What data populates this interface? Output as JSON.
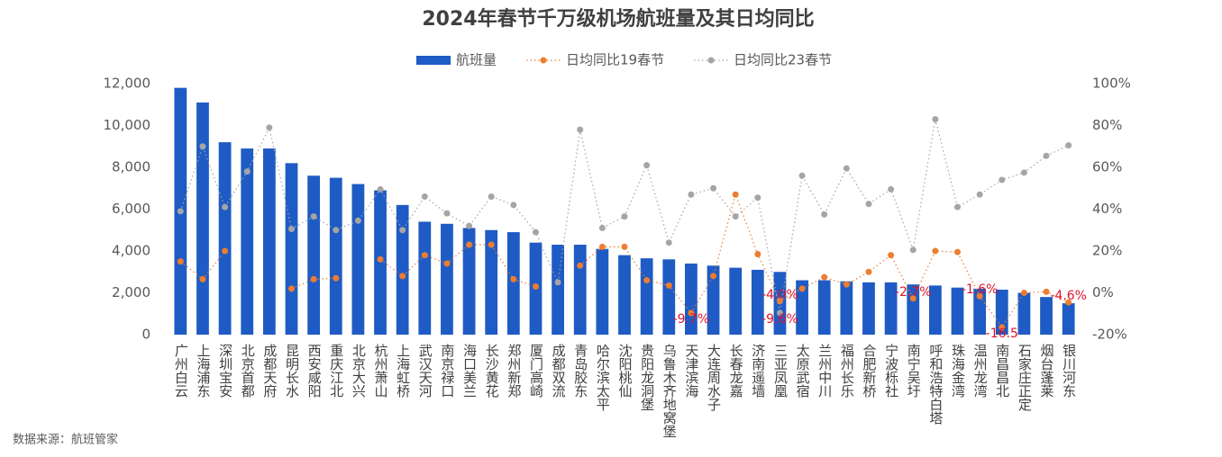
{
  "chart_data": {
    "type": "bar",
    "title": "2024年春节千万级机场航班量及其日均同比",
    "source": "数据来源：航班管家",
    "categories": [
      "广州白云",
      "上海浦东",
      "深圳宝安",
      "北京首都",
      "成都天府",
      "昆明长水",
      "西安咸阳",
      "重庆江北",
      "北京大兴",
      "杭州萧山",
      "上海虹桥",
      "武汉天河",
      "南京禄口",
      "海口美兰",
      "长沙黄花",
      "郑州新郑",
      "厦门高崎",
      "成都双流",
      "青岛胶东",
      "哈尔滨太平",
      "沈阳桃仙",
      "贵阳龙洞堡",
      "乌鲁木齐地窝堡",
      "天津滨海",
      "大连周水子",
      "长春龙嘉",
      "济南遥墙",
      "三亚凤凰",
      "太原武宿",
      "兰州中川",
      "福州长乐",
      "合肥新桥",
      "宁波栎社",
      "南宁吴圩",
      "呼和浩特白塔",
      "珠海金湾",
      "温州龙湾",
      "南昌昌北",
      "石家庄正定",
      "烟台蓬莱",
      "银川河东"
    ],
    "series": [
      {
        "name": "航班量",
        "type": "bar",
        "color": "#1f5bc4",
        "values": [
          11800,
          11100,
          9200,
          8900,
          8900,
          8200,
          7600,
          7500,
          7200,
          6900,
          6200,
          5400,
          5300,
          5100,
          5000,
          4900,
          4400,
          4300,
          4300,
          4100,
          3800,
          3650,
          3600,
          3400,
          3300,
          3200,
          3100,
          3000,
          2600,
          2600,
          2550,
          2500,
          2500,
          2400,
          2350,
          2250,
          2200,
          2150,
          2000,
          1800,
          1500
        ]
      },
      {
        "name": "日均同比19春节",
        "type": "line",
        "axis": "y2",
        "color": "#ed7d31",
        "values": [
          15,
          6.5,
          20,
          null,
          null,
          2,
          6.5,
          7,
          null,
          16,
          8,
          18,
          14,
          23,
          23,
          6.5,
          3,
          null,
          13,
          22,
          22,
          6,
          3.5,
          -9.7,
          8,
          47,
          18.5,
          -4.0,
          2,
          7.5,
          4,
          10,
          18,
          -2.7,
          20,
          19.5,
          -1.6,
          -16.5,
          0,
          0.5,
          -4.6
        ],
        "value_labels": [
          null,
          null,
          null,
          null,
          null,
          null,
          null,
          null,
          null,
          null,
          null,
          null,
          null,
          null,
          null,
          null,
          null,
          null,
          null,
          null,
          null,
          null,
          null,
          "-9.7%",
          null,
          null,
          null,
          "-4.0%",
          null,
          null,
          null,
          null,
          null,
          "-2.7%",
          null,
          null,
          "-1.6%",
          "-16.5",
          null,
          null,
          "-4.6%"
        ]
      },
      {
        "name": "日均同比23春节",
        "type": "line",
        "axis": "y2",
        "color": "#a5a5a5",
        "values": [
          39,
          70,
          41,
          58,
          79,
          30.5,
          36.5,
          30,
          34.5,
          49.5,
          30,
          46,
          38,
          32,
          46,
          42,
          29,
          5,
          78,
          31,
          36.5,
          61,
          24,
          47,
          50,
          36.5,
          45.5,
          -9.6,
          56,
          37.5,
          59.5,
          42.5,
          49.5,
          20.5,
          83,
          41,
          47,
          54,
          57.5,
          65.5,
          70.5
        ],
        "value_labels": [
          null,
          null,
          null,
          null,
          null,
          null,
          null,
          null,
          null,
          null,
          null,
          null,
          null,
          null,
          null,
          null,
          null,
          null,
          null,
          null,
          null,
          null,
          null,
          null,
          null,
          null,
          null,
          "-9.6%",
          null,
          null,
          null,
          null,
          null,
          null,
          null,
          null,
          null,
          null,
          null,
          null,
          null
        ]
      }
    ],
    "ylim": [
      0,
      12000
    ],
    "yticks": [
      0,
      {
        "value": 2000,
        "label": "2,000"
      },
      {
        "value": 4000,
        "label": "4,000"
      },
      {
        "value": 6000,
        "label": "6,000"
      },
      {
        "value": 8000,
        "label": "8,000"
      },
      {
        "value": 10000,
        "label": "10,000"
      },
      {
        "value": 12000,
        "label": "12,000"
      }
    ],
    "y2lim": [
      -20,
      100
    ],
    "y2ticks": [
      {
        "value": -20,
        "label": "-20%"
      },
      {
        "value": 0,
        "label": "0%"
      },
      {
        "value": 20,
        "label": "20%"
      },
      {
        "value": 40,
        "label": "40%"
      },
      {
        "value": 60,
        "label": "60%"
      },
      {
        "value": 80,
        "label": "80%"
      },
      {
        "value": 100,
        "label": "100%"
      }
    ],
    "value_label_color": "#e0112b",
    "grid": false,
    "legend": "top"
  }
}
